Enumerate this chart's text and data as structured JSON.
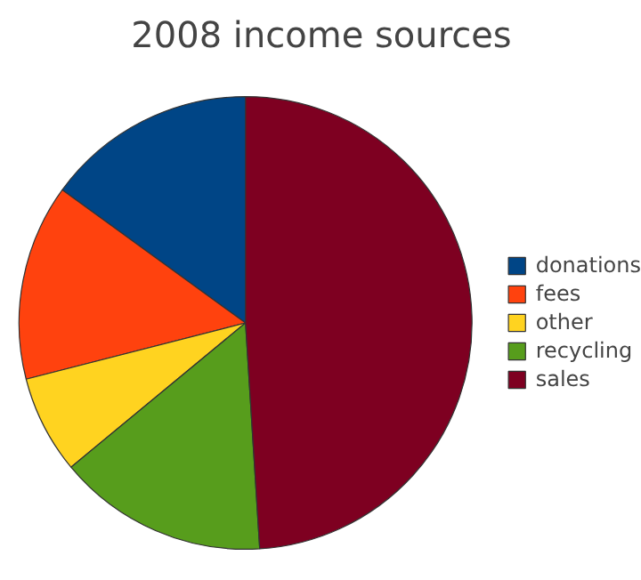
{
  "chart_data": {
    "type": "pie",
    "title": "2008 income sources",
    "categories": [
      "donations",
      "fees",
      "other",
      "recycling",
      "sales"
    ],
    "values": [
      15,
      14,
      7,
      15,
      49
    ],
    "colors": [
      "#004586",
      "#ff420e",
      "#ffd320",
      "#579d1c",
      "#7e0021"
    ],
    "legend": "right"
  }
}
